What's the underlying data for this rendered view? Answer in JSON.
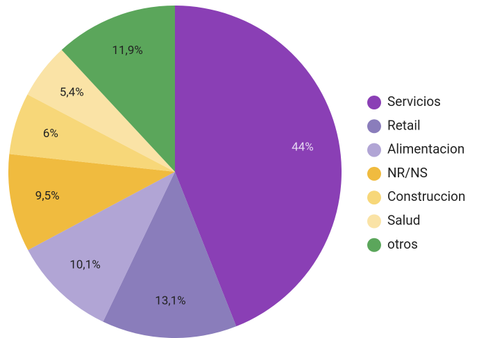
{
  "chart_data": {
    "type": "pie",
    "categories": [
      "Servicios",
      "Retail",
      "Alimentacion",
      "NR/NS",
      "Construccion",
      "Salud",
      "otros"
    ],
    "values": [
      44,
      13.1,
      10.1,
      9.5,
      6,
      5.4,
      11.9
    ],
    "value_labels": [
      "44%",
      "13,1%",
      "10,1%",
      "9,5%",
      "6%",
      "5,4%",
      "11,9%"
    ],
    "colors": [
      "#8a3fb5",
      "#8a7dbb",
      "#b1a5d5",
      "#f0bb3f",
      "#f7d779",
      "#fae3a6",
      "#5ba65b"
    ],
    "legend": "right"
  }
}
